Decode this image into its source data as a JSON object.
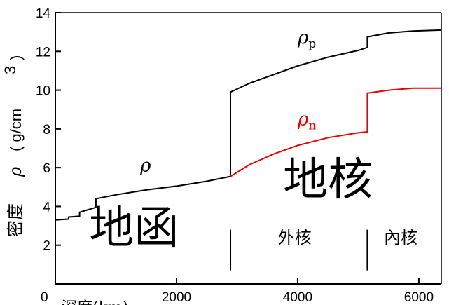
{
  "chart_data": {
    "type": "line",
    "title": "",
    "ylabel": {
      "prefix": "密度",
      "symbol": "ρ",
      "unit": "( g/cm",
      "unit_sup": "3",
      "close": ")"
    },
    "xlabel": "深度(km)",
    "xlim": [
      0,
      6371
    ],
    "ylim": [
      0,
      14
    ],
    "xticks": [
      0,
      2000,
      4000,
      6000
    ],
    "yticks": [
      2,
      4,
      6,
      8,
      10,
      12,
      14
    ],
    "grid": false,
    "series": [
      {
        "name": "ρ",
        "sub": "",
        "color": "#000000",
        "label_at": [
          1400,
          5.8
        ],
        "points": [
          [
            0,
            3.3
          ],
          [
            220,
            3.35
          ],
          [
            220,
            3.45
          ],
          [
            400,
            3.5
          ],
          [
            400,
            3.7
          ],
          [
            670,
            3.95
          ],
          [
            670,
            4.4
          ],
          [
            1000,
            4.6
          ],
          [
            1500,
            4.85
          ],
          [
            2000,
            5.05
          ],
          [
            2500,
            5.3
          ],
          [
            2891,
            5.55
          ]
        ]
      },
      {
        "name": "ρ",
        "sub": "p",
        "color": "#000000",
        "label_at": [
          4000,
          12.4
        ],
        "points": [
          [
            2891,
            5.55
          ],
          [
            2891,
            9.9
          ],
          [
            3200,
            10.35
          ],
          [
            3600,
            10.8
          ],
          [
            4000,
            11.25
          ],
          [
            4500,
            11.7
          ],
          [
            5000,
            12.05
          ],
          [
            5150,
            12.2
          ],
          [
            5150,
            12.75
          ],
          [
            5500,
            12.95
          ],
          [
            5900,
            13.05
          ],
          [
            6371,
            13.1
          ]
        ]
      },
      {
        "name": "ρ",
        "sub": "n",
        "color": "#ee0000",
        "label_at": [
          4000,
          8.2
        ],
        "points": [
          [
            2891,
            5.55
          ],
          [
            3200,
            6.15
          ],
          [
            3600,
            6.7
          ],
          [
            4000,
            7.15
          ],
          [
            4500,
            7.55
          ],
          [
            5000,
            7.8
          ],
          [
            5150,
            7.85
          ],
          [
            5150,
            9.85
          ],
          [
            5500,
            10.0
          ],
          [
            5900,
            10.1
          ],
          [
            6371,
            10.1
          ]
        ]
      }
    ],
    "boundaries": [
      2891,
      5150
    ],
    "regions": [
      {
        "label": "地函",
        "size": "large",
        "at": [
          1300,
          2.1
        ]
      },
      {
        "label": "地核",
        "size": "large",
        "at": [
          4500,
          4.6
        ]
      },
      {
        "label": "外核",
        "size": "small",
        "at": [
          3950,
          2.1
        ]
      },
      {
        "label": "內核",
        "size": "small",
        "at": [
          5700,
          2.1
        ]
      }
    ]
  }
}
